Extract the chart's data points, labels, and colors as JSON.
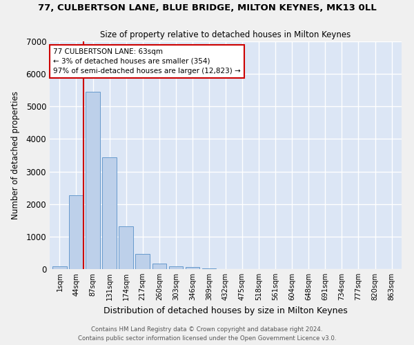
{
  "title_line1": "77, CULBERTSON LANE, BLUE BRIDGE, MILTON KEYNES, MK13 0LL",
  "title_line2": "Size of property relative to detached houses in Milton Keynes",
  "xlabel": "Distribution of detached houses by size in Milton Keynes",
  "ylabel": "Number of detached properties",
  "categories": [
    "1sqm",
    "44sqm",
    "87sqm",
    "131sqm",
    "174sqm",
    "217sqm",
    "260sqm",
    "303sqm",
    "346sqm",
    "389sqm",
    "432sqm",
    "475sqm",
    "518sqm",
    "561sqm",
    "604sqm",
    "648sqm",
    "691sqm",
    "734sqm",
    "777sqm",
    "820sqm",
    "863sqm"
  ],
  "values": [
    80,
    2280,
    5460,
    3440,
    1310,
    460,
    160,
    90,
    55,
    30,
    0,
    0,
    0,
    0,
    0,
    0,
    0,
    0,
    0,
    0,
    0
  ],
  "bar_color": "#bdd0ea",
  "bar_edge_color": "#6699cc",
  "vline_color": "#cc0000",
  "vline_pos": 1.43,
  "annotation_text": "77 CULBERTSON LANE: 63sqm\n← 3% of detached houses are smaller (354)\n97% of semi-detached houses are larger (12,823) →",
  "annotation_box_color": "#ffffff",
  "annotation_border_color": "#cc0000",
  "ylim": [
    0,
    7000
  ],
  "yticks": [
    0,
    1000,
    2000,
    3000,
    4000,
    5000,
    6000,
    7000
  ],
  "bg_color": "#dce6f5",
  "grid_color": "#ffffff",
  "footer_line1": "Contains HM Land Registry data © Crown copyright and database right 2024.",
  "footer_line2": "Contains public sector information licensed under the Open Government Licence v3.0."
}
